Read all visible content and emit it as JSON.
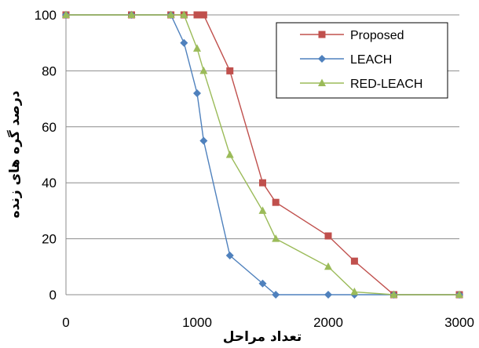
{
  "chart_data": {
    "type": "line",
    "xlabel": "تعداد مراحل",
    "ylabel": "درصد گره های زنده",
    "xlim": [
      0,
      3000
    ],
    "ylim": [
      0,
      100
    ],
    "xticks": [
      "0",
      "1000",
      "2000",
      "3000"
    ],
    "yticks": [
      "0",
      "20",
      "40",
      "60",
      "80",
      "100"
    ],
    "grid": "horizontal",
    "legend_position": "top-right",
    "series": [
      {
        "name": "Proposed",
        "color": "#C0504D",
        "marker": "square",
        "points": [
          [
            0,
            100
          ],
          [
            500,
            100
          ],
          [
            800,
            100
          ],
          [
            900,
            100
          ],
          [
            1000,
            100
          ],
          [
            1050,
            100
          ],
          [
            1250,
            80
          ],
          [
            1500,
            40
          ],
          [
            1600,
            33
          ],
          [
            2000,
            21
          ],
          [
            2200,
            12
          ],
          [
            2500,
            0
          ],
          [
            3000,
            0
          ]
        ]
      },
      {
        "name": "LEACH",
        "color": "#4F81BD",
        "marker": "diamond",
        "points": [
          [
            0,
            100
          ],
          [
            500,
            100
          ],
          [
            800,
            100
          ],
          [
            900,
            90
          ],
          [
            1000,
            72
          ],
          [
            1050,
            55
          ],
          [
            1250,
            14
          ],
          [
            1500,
            4
          ],
          [
            1600,
            0
          ],
          [
            2000,
            0
          ],
          [
            2200,
            0
          ],
          [
            2500,
            0
          ],
          [
            3000,
            0
          ]
        ]
      },
      {
        "name": "RED-LEACH",
        "color": "#9BBB59",
        "marker": "triangle",
        "points": [
          [
            0,
            100
          ],
          [
            500,
            100
          ],
          [
            800,
            100
          ],
          [
            900,
            100
          ],
          [
            1000,
            88
          ],
          [
            1050,
            80
          ],
          [
            1250,
            50
          ],
          [
            1500,
            30
          ],
          [
            1600,
            20
          ],
          [
            2000,
            10
          ],
          [
            2200,
            1
          ],
          [
            2500,
            0
          ],
          [
            3000,
            0
          ]
        ]
      }
    ]
  }
}
